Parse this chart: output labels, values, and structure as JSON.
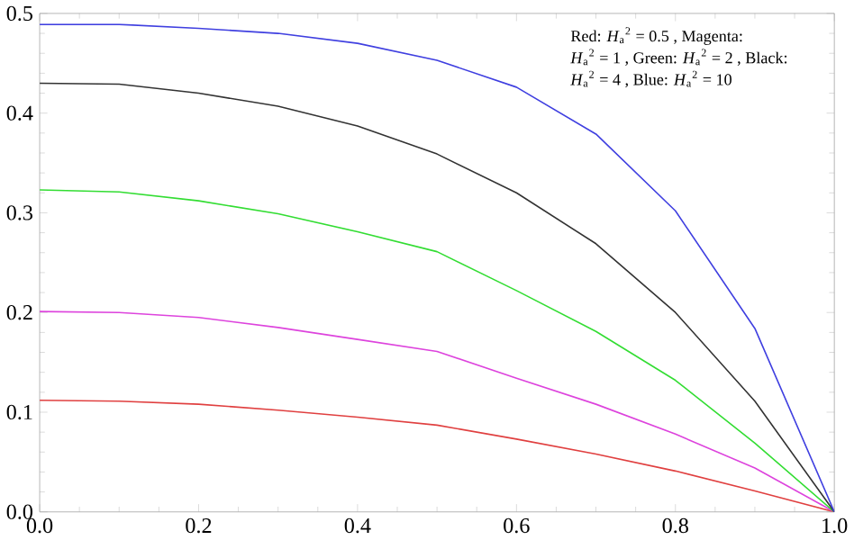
{
  "chart_data": {
    "type": "line",
    "x": [
      0,
      0.1,
      0.2,
      0.3,
      0.4,
      0.5,
      0.6,
      0.7,
      0.8,
      0.9,
      1.0
    ],
    "series": [
      {
        "color": "#e04040",
        "values": [
          0.112,
          0.111,
          0.108,
          0.102,
          0.095,
          0.087,
          0.073,
          0.058,
          0.041,
          0.021,
          0
        ]
      },
      {
        "color": "#dd44dd",
        "values": [
          0.201,
          0.2,
          0.195,
          0.185,
          0.173,
          0.161,
          0.134,
          0.108,
          0.078,
          0.044,
          0
        ]
      },
      {
        "color": "#33dd33",
        "values": [
          0.323,
          0.321,
          0.312,
          0.299,
          0.281,
          0.261,
          0.222,
          0.181,
          0.132,
          0.069,
          0
        ]
      },
      {
        "color": "#333333",
        "values": [
          0.43,
          0.429,
          0.42,
          0.407,
          0.387,
          0.359,
          0.32,
          0.269,
          0.2,
          0.111,
          0
        ]
      },
      {
        "color": "#4040e0",
        "values": [
          0.489,
          0.489,
          0.485,
          0.48,
          0.47,
          0.453,
          0.426,
          0.379,
          0.302,
          0.184,
          0
        ]
      }
    ],
    "xlim": [
      0,
      1
    ],
    "ylim": [
      0,
      0.5
    ],
    "xticks": [
      {
        "value": 0,
        "label": "0.0"
      },
      {
        "value": 0.2,
        "label": "0.2"
      },
      {
        "value": 0.4,
        "label": "0.4"
      },
      {
        "value": 0.6,
        "label": "0.6"
      },
      {
        "value": 0.8,
        "label": "0.8"
      },
      {
        "value": 1.0,
        "label": "1.0"
      }
    ],
    "yticks": [
      {
        "value": 0,
        "label": "0.0"
      },
      {
        "value": 0.1,
        "label": "0.1"
      },
      {
        "value": 0.2,
        "label": "0.2"
      },
      {
        "value": 0.3,
        "label": "0.3"
      },
      {
        "value": 0.4,
        "label": "0.4"
      },
      {
        "value": 0.5,
        "label": "0.5"
      }
    ],
    "annotations": [
      "Red:  *H*$_{a}$$^{2}$ = 0.5 ,  Magenta:",
      "*H*$_{a}$$^{2}$ = 1 , Green: *H*$_{a}$$^{2}$ = 2 , Black:",
      "*H*$_{a}$$^{2}$ = 4 , Blue:  *H*$_{a}$$^{2}$ = 10"
    ],
    "marker": "none",
    "line_style": "solid",
    "grid": false,
    "legend": false
  }
}
